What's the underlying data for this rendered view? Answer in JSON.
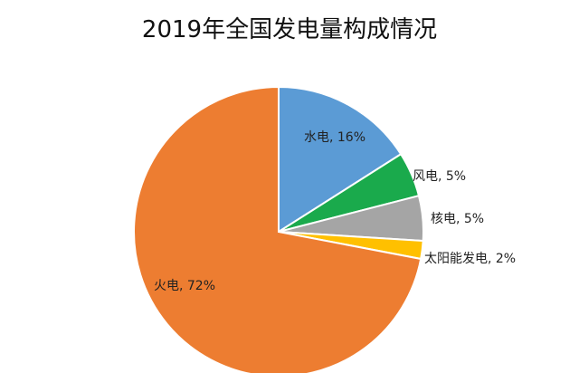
{
  "chart_data": {
    "type": "pie",
    "title": "2019年全国发电量构成情况",
    "slices": [
      {
        "label": "水电, 16%",
        "name": "水电",
        "value": 16,
        "color": "#5b9bd5"
      },
      {
        "label": "风电, 5%",
        "name": "风电",
        "value": 5,
        "color": "#1aaa4c"
      },
      {
        "label": "核电, 5%",
        "name": "核电",
        "value": 5,
        "color": "#a5a5a5"
      },
      {
        "label": "太阳能发电, 2%",
        "name": "太阳能发电",
        "value": 2,
        "color": "#ffc000"
      },
      {
        "label": "火电, 72%",
        "name": "火电",
        "value": 72,
        "color": "#ed7d31"
      }
    ],
    "legend": "none"
  }
}
